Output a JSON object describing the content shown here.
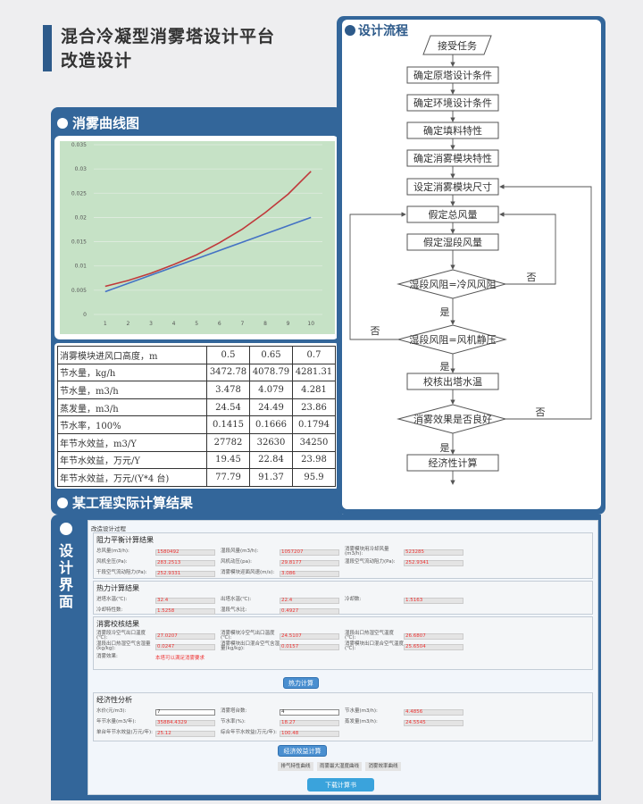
{
  "title": {
    "line1": "混合冷凝型消雾塔设计平台",
    "line2": "改造设计"
  },
  "colors": {
    "panel": "#33669a",
    "chart_bg": "#c6e2c6",
    "red_series": "#c0393b",
    "blue_series": "#4472c4",
    "value_text": "#e33333"
  },
  "left": {
    "chart_title": "消雾曲线图",
    "result_title": "某工程实际计算结果"
  },
  "chart_data": {
    "type": "line",
    "x": [
      1,
      2,
      3,
      4,
      5,
      6,
      7,
      8,
      9,
      10
    ],
    "ylim": [
      0,
      0.035
    ],
    "yticks": [
      "0",
      "0.005",
      "0.01",
      "0.015",
      "0.02",
      "0.025",
      "0.03",
      "0.035"
    ],
    "xticks": [
      "1",
      "2",
      "3",
      "4",
      "5",
      "6",
      "7",
      "8",
      "9",
      "10"
    ],
    "grid": true,
    "series": [
      {
        "color": "#c0393b",
        "values": [
          0.0058,
          0.007,
          0.0085,
          0.0103,
          0.0123,
          0.0148,
          0.0176,
          0.021,
          0.0248,
          0.0295
        ]
      },
      {
        "color": "#4472c4",
        "values": [
          0.0047,
          0.0064,
          0.0081,
          0.0098,
          0.0115,
          0.0132,
          0.0149,
          0.0166,
          0.0183,
          0.02
        ]
      }
    ]
  },
  "table": {
    "rows": [
      [
        "消雾模块进风口高度，m",
        "0.5",
        "0.65",
        "0.7"
      ],
      [
        "节水量，kg/h",
        "3472.78",
        "4078.79",
        "4281.31"
      ],
      [
        "节水量，m3/h",
        "3.478",
        "4.079",
        "4.281"
      ],
      [
        "蒸发量，m3/h",
        "24.54",
        "24.49",
        "23.86"
      ],
      [
        "节水率，100%",
        "0.1415",
        "0.1666",
        "0.1794"
      ],
      [
        "年节水效益，m3/Y",
        "27782",
        "32630",
        "34250"
      ],
      [
        "年节水效益，万元/Y",
        "19.45",
        "22.84",
        "23.98"
      ],
      [
        "年节水效益，万元/(Y*4 台)",
        "77.79",
        "91.37",
        "95.9"
      ]
    ]
  },
  "flow": {
    "title": "设计流程",
    "start": "接受任务",
    "steps": [
      "确定原塔设计条件",
      "确定环境设计条件",
      "确定填料特性",
      "确定消雾模块特性",
      "设定消雾模块尺寸",
      "假定总风量",
      "假定湿段风量"
    ],
    "d1": "湿段风阻=冷风风阻",
    "d2": "湿段风阻=风机静压",
    "check": "校核出塔水温",
    "d3": "消雾效果是否良好",
    "end": "经济性计算",
    "yes": "是",
    "no": "否"
  },
  "ui": {
    "label": "设计界面",
    "window_title": "改造设计过程",
    "g1": {
      "title": "阻力平衡计算结果",
      "fields": [
        [
          "总风量(m3/h):",
          "1580492"
        ],
        [
          "湿段风量(m3/h):",
          "1057207"
        ],
        [
          "消雾模块用冷却风量(m3/h):",
          "523285"
        ],
        [
          "风机全压(Pa):",
          "283.2513"
        ],
        [
          "风机动压(pa):",
          "29.8177"
        ],
        [
          "湿段空气流动阻力(Pa):",
          "252.9341"
        ],
        [
          "干段空气流动阻力(Pa):",
          "252.9331"
        ],
        [
          "消雾模块迎面风速(m/s):",
          "3.086"
        ]
      ]
    },
    "g2": {
      "title": "热力计算结果",
      "fields": [
        [
          "进塔水温(℃):",
          "32.4"
        ],
        [
          "出塔水温(℃):",
          "22.4"
        ],
        [
          "冷却数:",
          "1.5163"
        ],
        [
          "冷却特性数:",
          "1.5258"
        ],
        [
          "湿段气水比:",
          "0.4927"
        ]
      ]
    },
    "g3": {
      "title": "消雾校核结果",
      "fields": [
        [
          "消雾段冷空气出口温度(℃):",
          "27.0207"
        ],
        [
          "消雾模块冷空气出口温度(℃):",
          "24.5107"
        ],
        [
          "湿段出口热湿空气温度(℃):",
          "26.6807"
        ],
        [
          "湿段出口热湿空气含湿量(kg/kg):",
          "0.0247"
        ],
        [
          "消雾模块出口混合空气含湿量(kg/kg):",
          "0.0157"
        ],
        [
          "消雾模块出口混合空气温度(℃):",
          "25.6504"
        ]
      ],
      "effect_label": "消雾效果:",
      "effect_value": "本塔可以满足消雾要求"
    },
    "thermal_button": "热力计算",
    "g4": {
      "title": "经济性分析",
      "inputs": [
        [
          "水价(元/m3):",
          "7"
        ],
        [
          "消雾塔台数:",
          "4"
        ]
      ],
      "fields": [
        [
          "节水量(m3/h):",
          "4.4856"
        ],
        [
          "年节水量(m3/年):",
          "35884.4329"
        ],
        [
          "节水率(%):",
          "18.27"
        ],
        [
          "蒸发量(m3/h):",
          "24.5545"
        ],
        [
          "单台年节水效益(万元/年):",
          "25.12"
        ],
        [
          "综合年节水效益(万元/年):",
          "100.48"
        ]
      ]
    },
    "econ_button": "经济效益计算",
    "curve_buttons": [
      "排气特性曲线",
      "雨雾最大湿度曲线",
      "消雾效率曲线"
    ],
    "download_button": "下载计算书"
  }
}
